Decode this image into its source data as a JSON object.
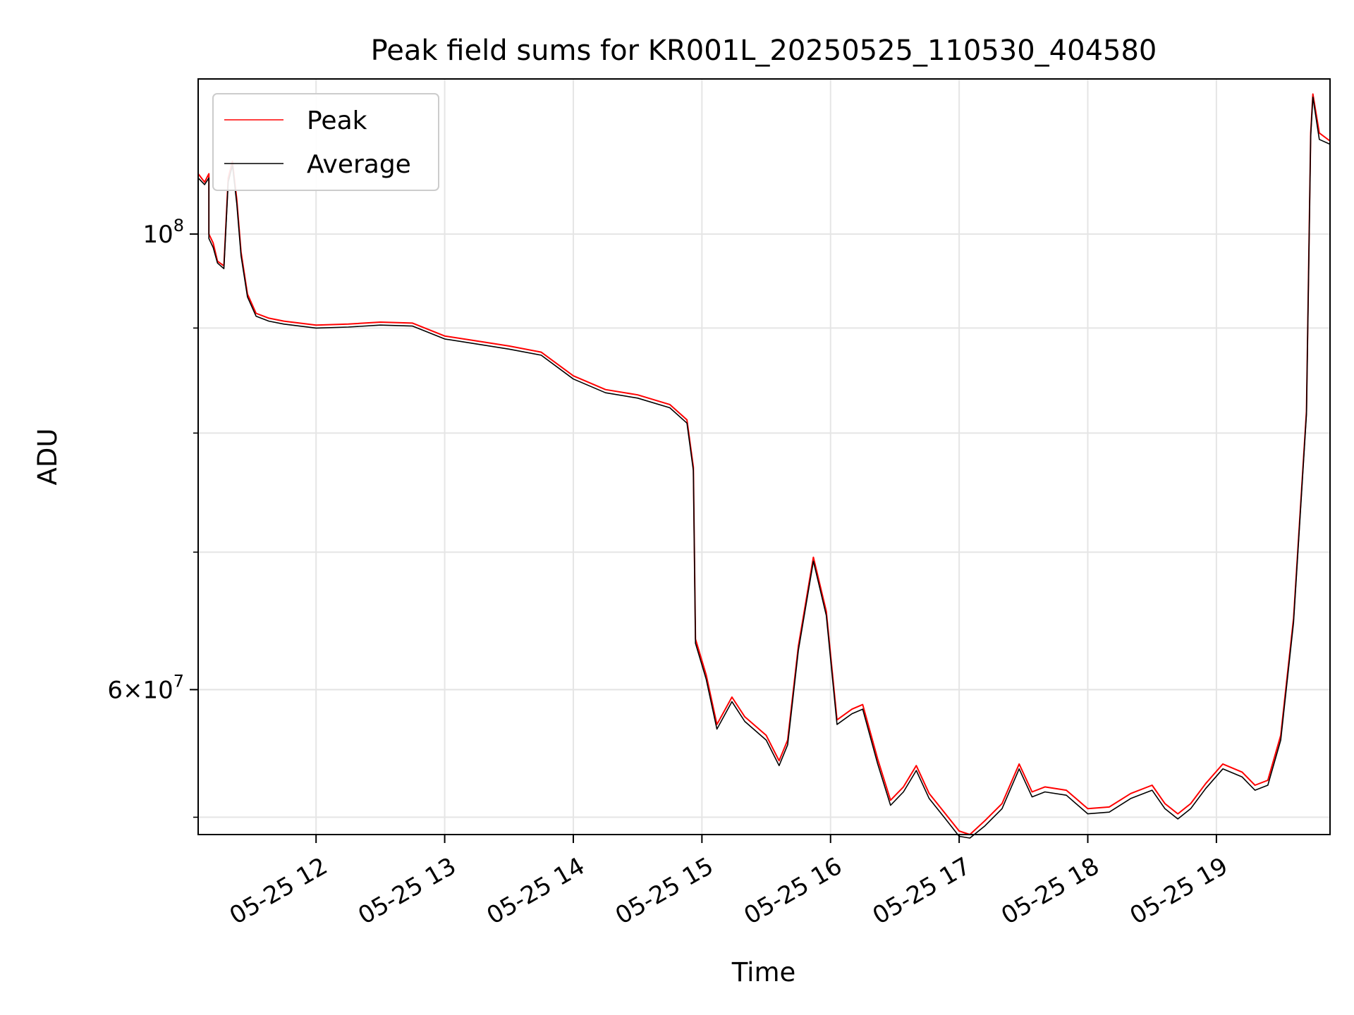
{
  "chart_data": {
    "type": "line",
    "title": "Peak field sums for KR001L_20250525_110530_404580",
    "xlabel": "Time",
    "ylabel": "ADU",
    "yscale": "log",
    "xlim": [
      "2025-05-25 11:05",
      "2025-05-25 19:53"
    ],
    "ylim": [
      51000000,
      119000000
    ],
    "x_ticks": [
      "05-25 12",
      "05-25 13",
      "05-25 14",
      "05-25 15",
      "05-25 16",
      "05-25 17",
      "05-25 18",
      "05-25 19"
    ],
    "x_tick_values": [
      "2025-05-25 12:00",
      "2025-05-25 13:00",
      "2025-05-25 14:00",
      "2025-05-25 15:00",
      "2025-05-25 16:00",
      "2025-05-25 17:00",
      "2025-05-25 18:00",
      "2025-05-25 19:00"
    ],
    "y_major_ticks": [
      {
        "value": 100000000,
        "mantissa": "10",
        "exponent": "8"
      },
      {
        "value": 60000000,
        "mantissa": "6×10",
        "exponent": "7"
      }
    ],
    "y_minor_tick_values": [
      52000000,
      60000000,
      70000000,
      80000000,
      90000000
    ],
    "grid": true,
    "legend_position": "top-left",
    "series": [
      {
        "name": "Peak",
        "color": "#ff0000",
        "x": [
          "2025-05-25 11:05",
          "2025-05-25 11:08",
          "2025-05-25 11:10",
          "2025-05-25 11:10",
          "2025-05-25 11:12",
          "2025-05-25 11:14",
          "2025-05-25 11:17",
          "2025-05-25 11:19",
          "2025-05-25 11:21",
          "2025-05-25 11:23",
          "2025-05-25 11:25",
          "2025-05-25 11:28",
          "2025-05-25 11:32",
          "2025-05-25 11:38",
          "2025-05-25 11:45",
          "2025-05-25 12:00",
          "2025-05-25 12:15",
          "2025-05-25 12:30",
          "2025-05-25 12:45",
          "2025-05-25 13:00",
          "2025-05-25 13:15",
          "2025-05-25 13:30",
          "2025-05-25 13:45",
          "2025-05-25 14:00",
          "2025-05-25 14:15",
          "2025-05-25 14:30",
          "2025-05-25 14:45",
          "2025-05-25 14:53",
          "2025-05-25 14:56",
          "2025-05-25 14:57",
          "2025-05-25 15:02",
          "2025-05-25 15:07",
          "2025-05-25 15:14",
          "2025-05-25 15:20",
          "2025-05-25 15:30",
          "2025-05-25 15:36",
          "2025-05-25 15:40",
          "2025-05-25 15:45",
          "2025-05-25 15:52",
          "2025-05-25 15:58",
          "2025-05-25 16:03",
          "2025-05-25 16:10",
          "2025-05-25 16:15",
          "2025-05-25 16:22",
          "2025-05-25 16:28",
          "2025-05-25 16:34",
          "2025-05-25 16:40",
          "2025-05-25 16:46",
          "2025-05-25 16:53",
          "2025-05-25 17:00",
          "2025-05-25 17:05",
          "2025-05-25 17:12",
          "2025-05-25 17:20",
          "2025-05-25 17:28",
          "2025-05-25 17:34",
          "2025-05-25 17:40",
          "2025-05-25 17:50",
          "2025-05-25 18:00",
          "2025-05-25 18:10",
          "2025-05-25 18:20",
          "2025-05-25 18:30",
          "2025-05-25 18:36",
          "2025-05-25 18:42",
          "2025-05-25 18:48",
          "2025-05-25 18:55",
          "2025-05-25 19:03",
          "2025-05-25 19:12",
          "2025-05-25 19:18",
          "2025-05-25 19:24",
          "2025-05-25 19:30",
          "2025-05-25 19:36",
          "2025-05-25 19:42",
          "2025-05-25 19:44",
          "2025-05-25 19:45",
          "2025-05-25 19:48",
          "2025-05-25 19:53"
        ],
        "y": [
          107000000,
          106000000,
          107000000,
          100000000,
          99000000,
          97000000,
          96500000,
          106500000,
          108500000,
          104000000,
          98000000,
          93500000,
          91500000,
          91000000,
          90700000,
          90300000,
          90400000,
          90600000,
          90500000,
          89200000,
          88700000,
          88200000,
          87600000,
          85300000,
          84000000,
          83500000,
          82600000,
          81200000,
          77000000,
          63500000,
          61000000,
          57700000,
          59500000,
          58200000,
          57000000,
          55400000,
          56700000,
          63000000,
          69600000,
          65500000,
          58000000,
          58700000,
          59000000,
          55500000,
          53000000,
          53800000,
          55100000,
          53400000,
          52300000,
          51200000,
          51000000,
          51800000,
          52800000,
          55200000,
          53500000,
          53800000,
          53600000,
          52500000,
          52600000,
          53400000,
          53900000,
          52800000,
          52200000,
          52800000,
          54000000,
          55200000,
          54700000,
          53900000,
          54200000,
          57000000,
          65000000,
          82000000,
          112000000,
          117000000,
          112000000,
          111000000
        ]
      },
      {
        "name": "Average",
        "color": "#000000",
        "x": [
          "2025-05-25 11:05",
          "2025-05-25 11:08",
          "2025-05-25 11:10",
          "2025-05-25 11:10",
          "2025-05-25 11:12",
          "2025-05-25 11:14",
          "2025-05-25 11:17",
          "2025-05-25 11:19",
          "2025-05-25 11:21",
          "2025-05-25 11:23",
          "2025-05-25 11:25",
          "2025-05-25 11:28",
          "2025-05-25 11:32",
          "2025-05-25 11:38",
          "2025-05-25 11:45",
          "2025-05-25 12:00",
          "2025-05-25 12:15",
          "2025-05-25 12:30",
          "2025-05-25 12:45",
          "2025-05-25 13:00",
          "2025-05-25 13:15",
          "2025-05-25 13:30",
          "2025-05-25 13:45",
          "2025-05-25 14:00",
          "2025-05-25 14:15",
          "2025-05-25 14:30",
          "2025-05-25 14:45",
          "2025-05-25 14:53",
          "2025-05-25 14:56",
          "2025-05-25 14:57",
          "2025-05-25 15:02",
          "2025-05-25 15:07",
          "2025-05-25 15:14",
          "2025-05-25 15:20",
          "2025-05-25 15:30",
          "2025-05-25 15:36",
          "2025-05-25 15:40",
          "2025-05-25 15:45",
          "2025-05-25 15:52",
          "2025-05-25 15:58",
          "2025-05-25 16:03",
          "2025-05-25 16:10",
          "2025-05-25 16:15",
          "2025-05-25 16:22",
          "2025-05-25 16:28",
          "2025-05-25 16:34",
          "2025-05-25 16:40",
          "2025-05-25 16:46",
          "2025-05-25 16:53",
          "2025-05-25 17:00",
          "2025-05-25 17:05",
          "2025-05-25 17:12",
          "2025-05-25 17:20",
          "2025-05-25 17:28",
          "2025-05-25 17:34",
          "2025-05-25 17:40",
          "2025-05-25 17:50",
          "2025-05-25 18:00",
          "2025-05-25 18:10",
          "2025-05-25 18:20",
          "2025-05-25 18:30",
          "2025-05-25 18:36",
          "2025-05-25 18:42",
          "2025-05-25 18:48",
          "2025-05-25 18:55",
          "2025-05-25 19:03",
          "2025-05-25 19:12",
          "2025-05-25 19:18",
          "2025-05-25 19:24",
          "2025-05-25 19:30",
          "2025-05-25 19:36",
          "2025-05-25 19:42",
          "2025-05-25 19:44",
          "2025-05-25 19:45",
          "2025-05-25 19:48",
          "2025-05-25 19:53"
        ],
        "y": [
          106500000,
          105700000,
          106500000,
          99500000,
          98500000,
          96800000,
          96200000,
          106000000,
          108000000,
          103500000,
          97600000,
          93200000,
          91200000,
          90700000,
          90400000,
          90000000,
          90100000,
          90300000,
          90200000,
          88900000,
          88400000,
          87900000,
          87300000,
          85000000,
          83700000,
          83200000,
          82300000,
          80900000,
          76700000,
          63200000,
          60700000,
          57400000,
          59200000,
          57900000,
          56700000,
          55100000,
          56400000,
          62700000,
          69300000,
          65200000,
          57700000,
          58400000,
          58700000,
          55200000,
          52700000,
          53500000,
          54800000,
          53100000,
          52000000,
          50900000,
          50800000,
          51500000,
          52500000,
          54900000,
          53200000,
          53500000,
          53300000,
          52200000,
          52300000,
          53100000,
          53600000,
          52500000,
          51900000,
          52500000,
          53700000,
          54900000,
          54400000,
          53600000,
          53900000,
          56700000,
          64700000,
          81700000,
          111600000,
          116600000,
          111200000,
          110600000
        ]
      }
    ]
  }
}
